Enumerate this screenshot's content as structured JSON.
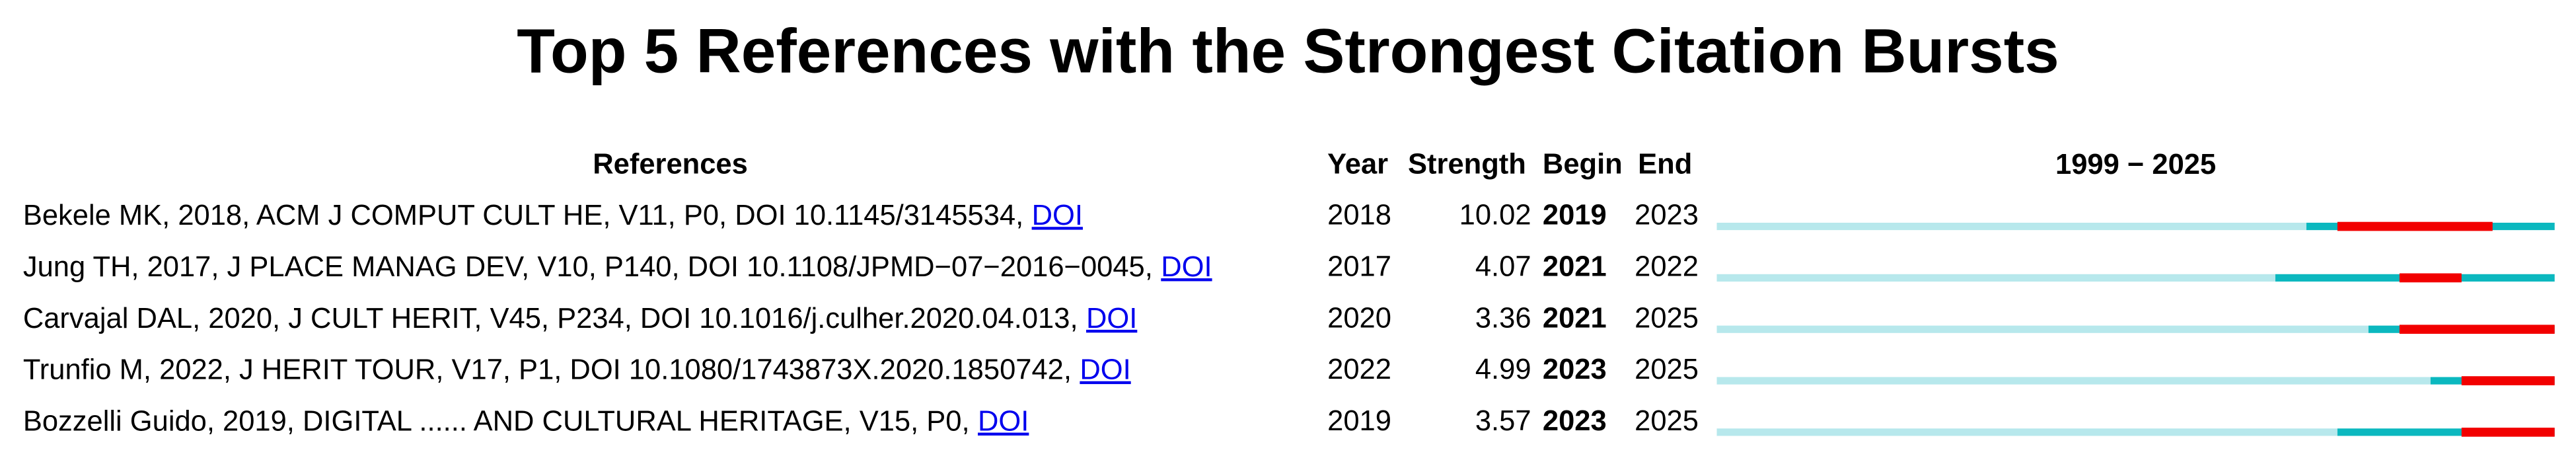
{
  "title": "Top 5 References with the Strongest Citation Bursts",
  "columns": {
    "references": "References",
    "year": "Year",
    "strength": "Strength",
    "begin": "Begin",
    "end": "End"
  },
  "timeline": {
    "start": 1999,
    "separator": "−",
    "end": 2025
  },
  "rows": [
    {
      "reference": "Bekele MK, 2018, ACM J COMPUT CULT HE, V11, P0, DOI 10.1145/3145534,",
      "link": "DOI",
      "year": 2018,
      "strength": 10.02,
      "begin": 2019,
      "end": 2023
    },
    {
      "reference": "Jung TH, 2017, J PLACE MANAG DEV, V10, P140, DOI 10.1108/JPMD−07−2016−0045,",
      "link": "DOI",
      "year": 2017,
      "strength": 4.07,
      "begin": 2021,
      "end": 2022
    },
    {
      "reference": "Carvajal DAL, 2020, J CULT HERIT, V45, P234, DOI 10.1016/j.culher.2020.04.013,",
      "link": "DOI",
      "year": 2020,
      "strength": 3.36,
      "begin": 2021,
      "end": 2025
    },
    {
      "reference": "Trunfio M, 2022, J HERIT TOUR, V17, P1, DOI 10.1080/1743873X.2020.1850742,",
      "link": "DOI",
      "year": 2022,
      "strength": 4.99,
      "begin": 2023,
      "end": 2025
    },
    {
      "reference": "Bozzelli Guido, 2019, DIGITAL ...... AND CULTURAL HERITAGE, V15, P0,",
      "link": "DOI",
      "year": 2019,
      "strength": 3.57,
      "begin": 2023,
      "end": 2025
    }
  ]
}
